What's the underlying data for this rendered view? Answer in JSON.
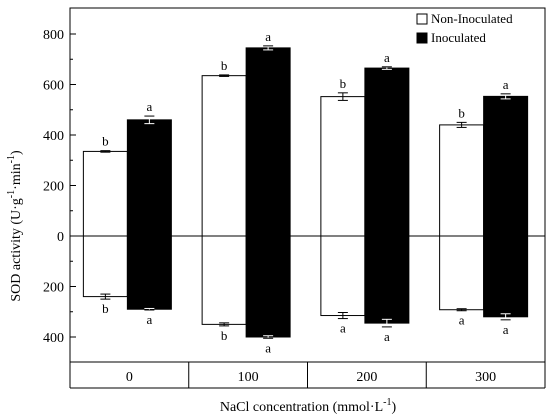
{
  "chart_data": {
    "type": "bar",
    "categories": [
      "0",
      "100",
      "200",
      "300"
    ],
    "xlabel": "NaCl concentration (mmol·L",
    "xlabel_sup": "-1",
    "xlabel_tail": ")",
    "ylabel": "SOD activity (U·g",
    "ylabel_sup1": "-1",
    "ylabel_mid": "·min",
    "ylabel_sup2": "-1",
    "ylabel_tail": ")",
    "ylim": [
      -400,
      800
    ],
    "y_ticks": [
      -400,
      -200,
      0,
      200,
      400,
      600,
      800
    ],
    "y_tick_labels": [
      "400",
      "200",
      "0",
      "200",
      "400",
      "600",
      "800"
    ],
    "legend_position": "top-right",
    "series": [
      {
        "name": "Non-Inoculated",
        "color": "#ffffff",
        "values_top": [
          335,
          635,
          552,
          440
        ],
        "errors_top": [
          3,
          3,
          15,
          10
        ],
        "letters_top": [
          "b",
          "b",
          "b",
          "b"
        ],
        "values_bottom": [
          -240,
          -350,
          -315,
          -292
        ],
        "errors_bottom": [
          10,
          6,
          12,
          4
        ],
        "letters_bottom": [
          "b",
          "b",
          "a",
          "a"
        ]
      },
      {
        "name": "Inoculated",
        "color": "#000000",
        "values_top": [
          460,
          745,
          665,
          553
        ],
        "errors_top": [
          15,
          8,
          5,
          10
        ],
        "letters_top": [
          "a",
          "a",
          "a",
          "a"
        ],
        "values_bottom": [
          -290,
          -400,
          -345,
          -320
        ],
        "errors_bottom": [
          3,
          5,
          15,
          12
        ],
        "letters_bottom": [
          "a",
          "a",
          "a",
          "a"
        ]
      }
    ]
  }
}
